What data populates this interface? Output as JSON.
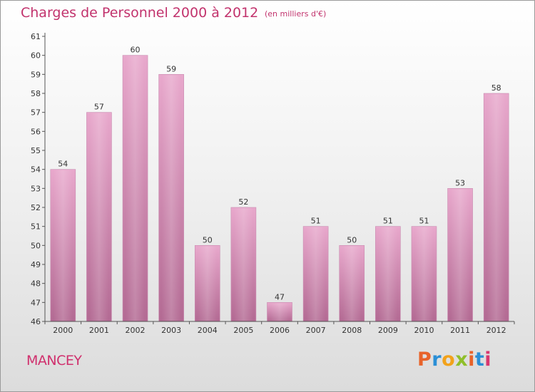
{
  "header": {
    "title": "Charges de Personnel 2000 à 2012",
    "subtitle": "(en milliers d'€)"
  },
  "footer": {
    "commune": "MANCEY",
    "logo": "Proxiti"
  },
  "colors": {
    "title": "#c2336d",
    "bar_light": "#e8a8cc",
    "bar_dark": "#b36a93",
    "logo_letters": [
      "#e8632a",
      "#2b8fd6",
      "#f2a21b",
      "#8fbf2a",
      "#e8632a",
      "#2b8fd6",
      "#d8376f"
    ]
  },
  "chart_data": {
    "type": "bar",
    "title": "Charges de Personnel 2000 à 2012",
    "subtitle": "(en milliers d'€)",
    "categories": [
      "2000",
      "2001",
      "2002",
      "2003",
      "2004",
      "2005",
      "2006",
      "2007",
      "2008",
      "2009",
      "2010",
      "2011",
      "2012"
    ],
    "values": [
      54,
      57,
      60,
      59,
      50,
      52,
      47,
      51,
      50,
      51,
      51,
      53,
      58
    ],
    "ylim": [
      46,
      61
    ],
    "yticks": [
      46,
      47,
      48,
      49,
      50,
      51,
      52,
      53,
      54,
      55,
      56,
      57,
      58,
      59,
      60,
      61
    ],
    "grid": false,
    "data_labels": true
  }
}
